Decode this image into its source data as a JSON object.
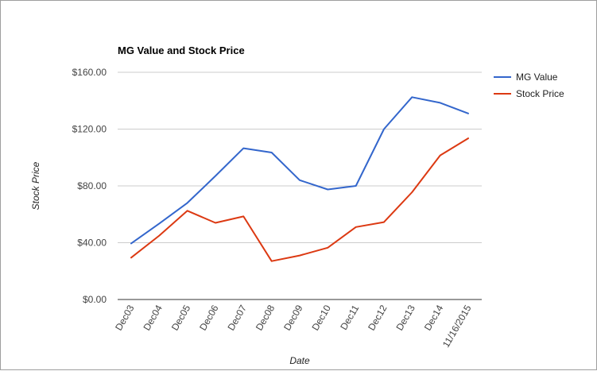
{
  "chart_data": {
    "type": "line",
    "title": "MG Value and Stock Price",
    "xlabel": "Date",
    "ylabel": "Stock Price",
    "categories": [
      "Dec03",
      "Dec04",
      "Dec05",
      "Dec06",
      "Dec07",
      "Dec08",
      "Dec09",
      "Dec10",
      "Dec11",
      "Dec12",
      "Dec13",
      "Dec14",
      "11/16/2015"
    ],
    "y_ticks": [
      "$0.00",
      "$40.00",
      "$80.00",
      "$120.00",
      "$160.00"
    ],
    "y_tick_values": [
      0,
      40,
      80,
      120,
      160
    ],
    "ylim": [
      0,
      160
    ],
    "grid": true,
    "legend_position": "right",
    "series": [
      {
        "name": "MG Value",
        "color": "#3366cc",
        "values": [
          39.5,
          53.5,
          68,
          87,
          106.5,
          103.5,
          84,
          77.5,
          80,
          120,
          142.5,
          138.5,
          131
        ]
      },
      {
        "name": "Stock Price",
        "color": "#dc3912",
        "values": [
          29.5,
          45,
          62.5,
          54,
          58.5,
          27,
          31,
          36.5,
          51,
          54.5,
          75.5,
          101.5,
          113.5
        ]
      }
    ]
  }
}
